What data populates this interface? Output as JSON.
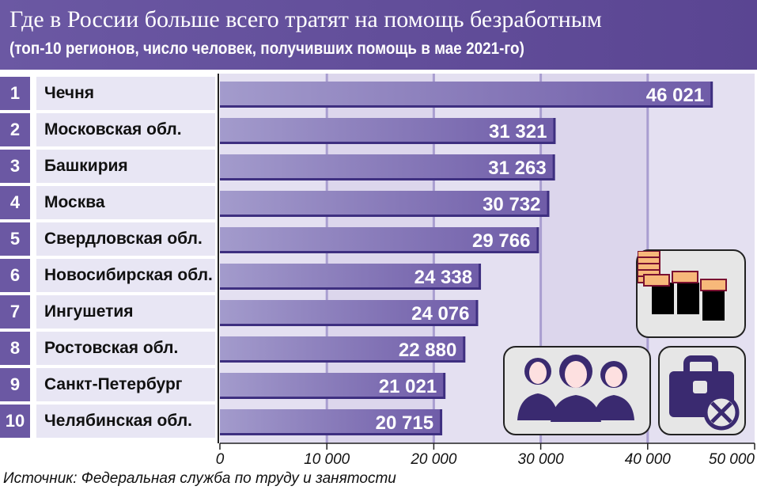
{
  "header": {
    "title": "Где в России больше всего тратят на помощь безработным",
    "subtitle": "(топ-10 регионов, число человек, получивших помощь в мае 2021-го)"
  },
  "chart_data": {
    "type": "bar",
    "orientation": "horizontal",
    "title": "Где в России больше всего тратят на помощь безработным",
    "subtitle": "(топ-10 регионов, число человек, получивших помощь в мае 2021-го)",
    "ranks": [
      "1",
      "2",
      "3",
      "4",
      "5",
      "6",
      "7",
      "8",
      "9",
      "10"
    ],
    "categories": [
      "Чечня",
      "Московская обл.",
      "Башкирия",
      "Москва",
      "Свердловская обл.",
      "Новосибирская обл.",
      "Ингушетия",
      "Ростовская обл.",
      "Санкт-Петербург",
      "Челябинская обл."
    ],
    "values": [
      46021,
      31321,
      31263,
      30732,
      29766,
      24338,
      24076,
      22880,
      21021,
      20715
    ],
    "value_labels": [
      "46 021",
      "31 321",
      "31 263",
      "30 732",
      "29 766",
      "24 338",
      "24 076",
      "22 880",
      "21 021",
      "20 715"
    ],
    "xlim": [
      0,
      50000
    ],
    "x_ticks": [
      0,
      10000,
      20000,
      30000,
      40000,
      50000
    ],
    "x_tick_labels": [
      "0",
      "10 000",
      "20 000",
      "30 000",
      "40 000",
      "50 000"
    ],
    "grid": true,
    "colors": {
      "bar": "#7a68b0",
      "bar_edge": "#3e2f80",
      "header": "#6b58a3",
      "background": "#ded9ee"
    }
  },
  "icons": [
    "money-stacks-icon",
    "people-group-icon",
    "briefcase-cancel-icon"
  ],
  "source": "Источник: Федеральная служба по труду и занятости"
}
